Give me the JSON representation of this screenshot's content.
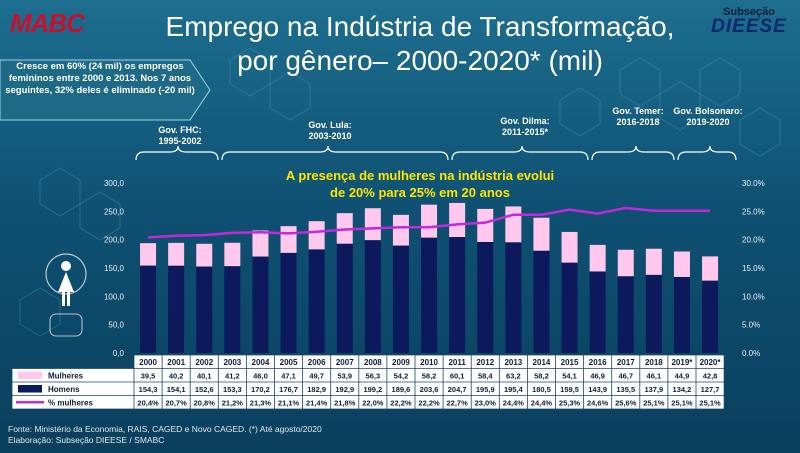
{
  "header": {
    "logo_text": "MABC",
    "title_line1": "Emprego na Indústria de Transformação,",
    "title_line2": "por gênero– 2000-2020* (mil)",
    "subsecao_top": "Subseção",
    "subsecao_brand": "DIEESE"
  },
  "callout": {
    "text": "Cresce em 60% (24 mil) os empregos femininos entre 2000 e 2013. Nos 7 anos seguintes, 32% deles é eliminado (-20 mil)"
  },
  "governments": [
    {
      "name": "Gov. FHC:",
      "period": "1995-2002"
    },
    {
      "name": "Gov. Lula:",
      "period": "2003-2010"
    },
    {
      "name": "Gov. Dilma:",
      "period": "2011-2015*"
    },
    {
      "name": "Gov. Temer:",
      "period": "2016-2018"
    },
    {
      "name": "Gov. Bolsonaro:",
      "period": "2019-2020"
    }
  ],
  "highlight": {
    "line1": "A presença de mulheres na indústria evolui",
    "line2": "de 20% para 25% em 20 anos"
  },
  "footer": {
    "source": "Fonte: Ministério da Economia, RAIS, CAGED e Novo CAGED. (*) Até agosto/2020",
    "credits": "Elaboração: Subseção DIEESE / SMABC"
  },
  "colors": {
    "mulheres": "#ffc8ec",
    "homens": "#0c1a5c",
    "pct_line": "#c02ad8",
    "accent_yellow": "#ffe600",
    "brand_red": "#c8102e"
  },
  "chart_data": {
    "type": "bar",
    "stacked": true,
    "categories": [
      "2000",
      "2001",
      "2002",
      "2003",
      "2004",
      "2005",
      "2006",
      "2007",
      "2008",
      "2009",
      "2010",
      "2011",
      "2012",
      "2013",
      "2014",
      "2015",
      "2016",
      "2017",
      "2018",
      "2019*",
      "2020*"
    ],
    "series": [
      {
        "name": "Mulheres",
        "values": [
          39.5,
          40.2,
          40.1,
          41.2,
          46.0,
          47.1,
          49.7,
          53.9,
          56.3,
          54.2,
          58.2,
          60.1,
          58.4,
          63.2,
          58.2,
          54.1,
          46.9,
          46.7,
          46.1,
          44.9,
          42.8
        ]
      },
      {
        "name": "Homens",
        "values": [
          154.3,
          154.1,
          152.6,
          153.3,
          170.2,
          176.7,
          182.9,
          192.9,
          199.2,
          189.6,
          203.6,
          204.7,
          195.9,
          195.4,
          180.5,
          159.5,
          143.9,
          135.5,
          137.9,
          134.2,
          127.7
        ]
      },
      {
        "name": "% mulheres",
        "axis": "right",
        "values": [
          "20,4%",
          "20,7%",
          "20,8%",
          "21,2%",
          "21,3%",
          "21,1%",
          "21,4%",
          "21,8%",
          "22,0%",
          "22,2%",
          "22,2%",
          "22,7%",
          "23,0%",
          "24,4%",
          "24,4%",
          "25,3%",
          "24,6%",
          "25,6%",
          "25,1%",
          "25,1%",
          "25,1%"
        ]
      }
    ],
    "left_ticks": [
      "0,0",
      "50,0",
      "100,0",
      "150,0",
      "200,0",
      "250,0",
      "300,0"
    ],
    "right_ticks": [
      "0.0%",
      "5.0%",
      "10.0%",
      "15.0%",
      "20.0%",
      "25.0%",
      "30.0%"
    ],
    "ylim": [
      0,
      300
    ],
    "y2lim": [
      0,
      30
    ],
    "xlabel": "",
    "ylabel": "",
    "grid": false,
    "legend": "table-bottom"
  }
}
